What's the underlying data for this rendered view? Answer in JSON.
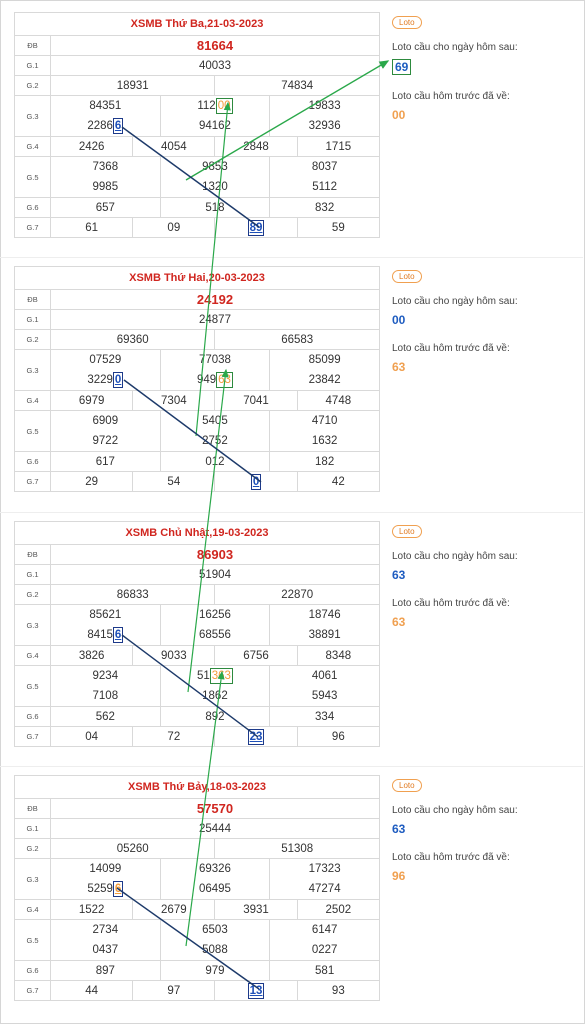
{
  "panels": [
    {
      "title": "XSMB Thứ Ba,21-03-2023",
      "db": "81664",
      "g1": "40033",
      "g2": [
        "18931",
        "74834"
      ],
      "g3a": [
        "84351",
        "11200",
        "19833"
      ],
      "g3b": [
        "22866",
        "94162",
        "32936"
      ],
      "g4": [
        "2426",
        "4054",
        "2848",
        "1715"
      ],
      "g5a": [
        "7368",
        "9853",
        "8037"
      ],
      "g5b": [
        "9985",
        "1320",
        "5112"
      ],
      "g6": [
        "657",
        "518",
        "832"
      ],
      "g7": [
        "61",
        "09",
        "89",
        "59"
      ],
      "side": {
        "loto": "Loto",
        "next_label": "Loto cầu cho ngày hôm sau:",
        "next_value": "69",
        "prev_label": "Loto cầu hôm trước đã về:",
        "prev_value": "00"
      }
    },
    {
      "title": "XSMB Thứ Hai,20-03-2023",
      "db": "24192",
      "g1": "24877",
      "g2": [
        "69360",
        "66583"
      ],
      "g3a": [
        "07529",
        "77038",
        "85099"
      ],
      "g3b": [
        "32290",
        "94963",
        "23842"
      ],
      "g4": [
        "6979",
        "7304",
        "7041",
        "4748"
      ],
      "g5a": [
        "6909",
        "5405",
        "4710"
      ],
      "g5b": [
        "9722",
        "2752",
        "1632"
      ],
      "g6": [
        "617",
        "012",
        "182"
      ],
      "g7": [
        "29",
        "54",
        "80",
        "42"
      ],
      "side": {
        "loto": "Loto",
        "next_label": "Loto cầu cho ngày hôm sau:",
        "next_value": "00",
        "prev_label": "Loto cầu hôm trước đã về:",
        "prev_value": "63"
      }
    },
    {
      "title": "XSMB Chủ Nhật,19-03-2023",
      "db": "86903",
      "g1": "51904",
      "g2": [
        "86833",
        "22870"
      ],
      "g3a": [
        "85621",
        "16256",
        "18746"
      ],
      "g3b": [
        "84156",
        "68556",
        "38891"
      ],
      "g4": [
        "3826",
        "9033",
        "6756",
        "8348"
      ],
      "g5a": [
        "9234",
        "51363",
        "4061"
      ],
      "g5b": [
        "7108",
        "1862",
        "5943"
      ],
      "g6": [
        "562",
        "892",
        "334"
      ],
      "g7": [
        "04",
        "72",
        "23",
        "96"
      ],
      "side": {
        "loto": "Loto",
        "next_label": "Loto cầu cho ngày hôm sau:",
        "next_value": "63",
        "prev_label": "Loto cầu hôm trước đã về:",
        "prev_value": "63"
      }
    },
    {
      "title": "XSMB Thứ Bảy,18-03-2023",
      "db": "57570",
      "g1": "25444",
      "g2": [
        "05260",
        "51308"
      ],
      "g3a": [
        "14099",
        "69326",
        "17323"
      ],
      "g3b": [
        "52596",
        "06495",
        "47274"
      ],
      "g4": [
        "1522",
        "2679",
        "3931",
        "2502"
      ],
      "g5a": [
        "2734",
        "6503",
        "6147"
      ],
      "g5b": [
        "0437",
        "5088",
        "0227"
      ],
      "g6": [
        "897",
        "979",
        "581"
      ],
      "g7": [
        "44",
        "97",
        "13",
        "93"
      ],
      "side": {
        "loto": "Loto",
        "next_label": "Loto cầu cho ngày hôm sau:",
        "next_value": "63",
        "prev_label": "Loto cầu hôm trước đã về:",
        "prev_value": "96"
      }
    }
  ],
  "labels": {
    "db": "ĐB",
    "g1": "G.1",
    "g2": "G.2",
    "g3": "G.3",
    "g4": "G.4",
    "g5": "G.5",
    "g6": "G.6",
    "g7": "G.7"
  },
  "colors": {
    "title_red": "#d0261f",
    "arrow_green": "#2aa84a",
    "arrow_navy": "#1d3a6a",
    "next_blue": "#1e5cc0",
    "prev_orange": "#f0a050"
  }
}
